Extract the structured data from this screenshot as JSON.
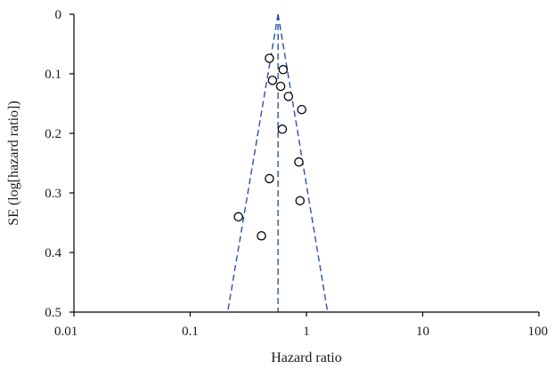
{
  "chart_data": {
    "type": "scatter",
    "title": "",
    "xlabel": "Hazard ratio",
    "ylabel": "SE (log[hazard ratio])",
    "x_scale": "log",
    "x_ticks": [
      0.01,
      0.1,
      1,
      10,
      100
    ],
    "x_tick_labels": [
      "0.01",
      "0.1",
      "1",
      "10",
      "100"
    ],
    "xlim": [
      0.01,
      100
    ],
    "y_inverted": true,
    "y_ticks": [
      0,
      0.1,
      0.2,
      0.3,
      0.4,
      0.5
    ],
    "y_tick_labels": [
      "0",
      "0.1",
      "0.2",
      "0.3",
      "0.4",
      "0.5"
    ],
    "ylim": [
      0,
      0.5
    ],
    "grid": false,
    "legend": "none",
    "funnel": {
      "pooled_hr": 0.57,
      "lower_at_max_se": 0.21,
      "upper_at_max_se": 1.52
    },
    "points": [
      {
        "x": 0.48,
        "y": 0.074
      },
      {
        "x": 0.63,
        "y": 0.093
      },
      {
        "x": 0.51,
        "y": 0.111
      },
      {
        "x": 0.6,
        "y": 0.121
      },
      {
        "x": 0.7,
        "y": 0.138
      },
      {
        "x": 0.91,
        "y": 0.16
      },
      {
        "x": 0.62,
        "y": 0.193
      },
      {
        "x": 0.86,
        "y": 0.248
      },
      {
        "x": 0.48,
        "y": 0.276
      },
      {
        "x": 0.88,
        "y": 0.313
      },
      {
        "x": 0.26,
        "y": 0.34
      },
      {
        "x": 0.41,
        "y": 0.372
      }
    ],
    "colors": {
      "funnel": "#2a52a8",
      "axis": "#000000",
      "point_stroke": "#000000"
    }
  }
}
